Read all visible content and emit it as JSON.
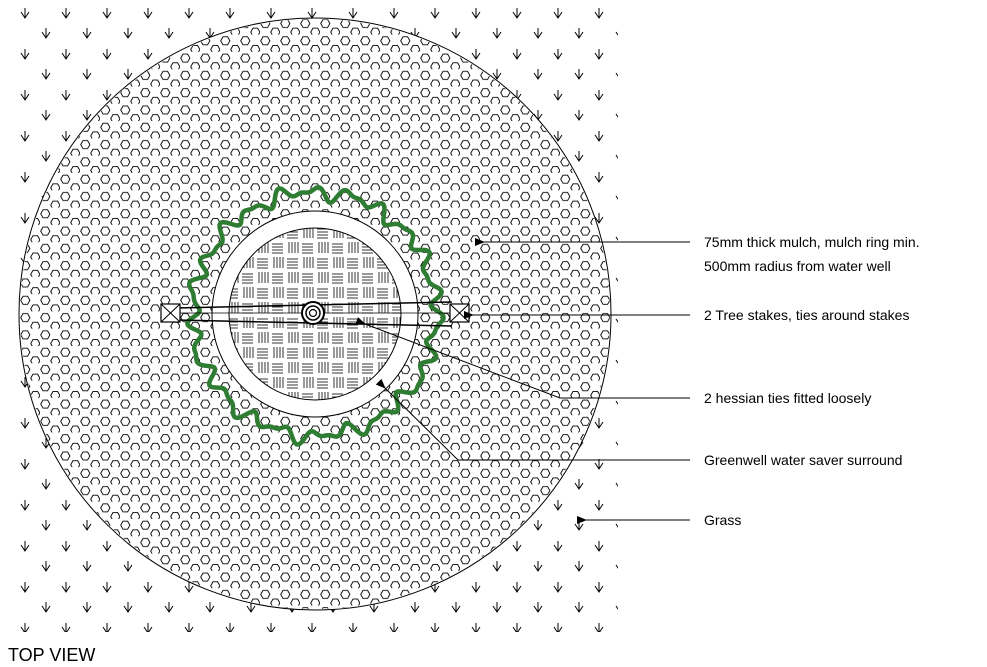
{
  "view_title": "TOP VIEW",
  "callouts": {
    "mulch": [
      "75mm thick mulch, mulch ring min.",
      "500mm radius from water well"
    ],
    "stakes": "2 Tree stakes, ties around stakes",
    "ties": "2 hessian ties fitted loosely",
    "surround": "Greenwell water saver surround",
    "grass": "Grass"
  },
  "colors": {
    "line": "#000000",
    "hedge": "#2e7d32",
    "background": "#ffffff"
  },
  "icons": {
    "grass": "grass-tuft-symbol",
    "mulch": "hexagon-pattern",
    "water_well": "woven-basket-pattern",
    "tree_stake": "crossed-box-symbol"
  }
}
